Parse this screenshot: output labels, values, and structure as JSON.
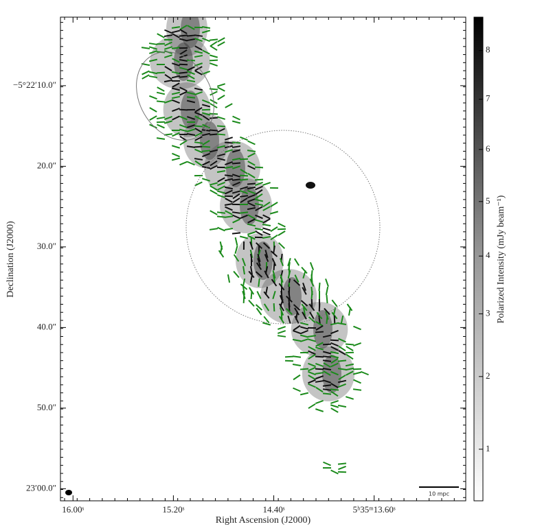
{
  "chart_data": {
    "type": "map",
    "xlabel": "Right Ascension (J2000)",
    "ylabel": "Declination (J2000)",
    "xlim": [
      16.1,
      12.87
    ],
    "xticks": [
      {
        "value": 16.0,
        "label": "16.00ˢ"
      },
      {
        "value": 15.2,
        "label": "15.20ˢ"
      },
      {
        "value": 14.4,
        "label": "14.40ˢ"
      },
      {
        "value": 13.6,
        "label": "5ʰ35ᵐ13.60ˢ"
      }
    ],
    "ylim": [
      61.5,
      1.5
    ],
    "yticks": [
      {
        "value": 10,
        "label": "−5°22′10.0″"
      },
      {
        "value": 20,
        "label": "20.0″"
      },
      {
        "value": 30,
        "label": "30.0″"
      },
      {
        "value": 40,
        "label": "40.0″"
      },
      {
        "value": 50,
        "label": "50.0″"
      },
      {
        "value": 60,
        "label": "23′00.0″"
      }
    ],
    "colorbar_label": "Polarized Intensity (mJy beam⁻¹)",
    "clim": [
      0.5,
      8.7
    ],
    "cscale_power": 0.8,
    "cticks": [
      1,
      2,
      3,
      4,
      5,
      6,
      7,
      8
    ],
    "scalebar_label": "10 mpc"
  }
}
